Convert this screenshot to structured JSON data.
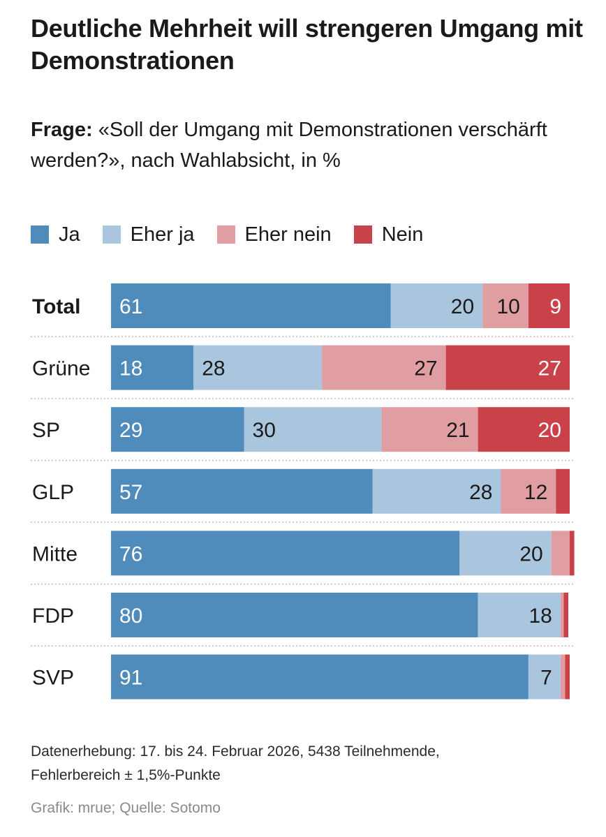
{
  "title": "Deutliche Mehrheit will strengeren Umgang mit Demonstrationen",
  "question": {
    "label": "Frage:",
    "text": "«Soll der Umgang mit Demonstrationen verschärft werden?», nach Wahlabsicht, in %"
  },
  "colors": {
    "ja": "#4f8cbc",
    "eher_ja": "#a9c6de",
    "eher_nein": "#e09ea2",
    "nein": "#c9424a"
  },
  "chart_data": {
    "type": "bar",
    "orientation": "horizontal",
    "stacked": true,
    "unit": "%",
    "legend": [
      "Ja",
      "Eher ja",
      "Eher nein",
      "Nein"
    ],
    "categories": [
      "Total",
      "Grüne",
      "SP",
      "GLP",
      "Mitte",
      "FDP",
      "SVP"
    ],
    "series": [
      {
        "name": "Ja",
        "values": [
          61,
          18,
          29,
          57,
          76,
          80,
          91
        ]
      },
      {
        "name": "Eher ja",
        "values": [
          20,
          28,
          30,
          28,
          20,
          18,
          7
        ]
      },
      {
        "name": "Eher nein",
        "values": [
          10,
          27,
          21,
          12,
          4,
          0.7,
          1
        ]
      },
      {
        "name": "Nein",
        "values": [
          9,
          27,
          20,
          3,
          1,
          1,
          1
        ]
      }
    ],
    "labels": [
      [
        "61",
        "20",
        "10",
        "9"
      ],
      [
        "18",
        "28",
        "27",
        "27"
      ],
      [
        "29",
        "30",
        "21",
        "20"
      ],
      [
        "57",
        "28",
        "12",
        ""
      ],
      [
        "76",
        "20",
        "",
        ""
      ],
      [
        "80",
        "18",
        "",
        ""
      ],
      [
        "91",
        "7",
        "",
        ""
      ]
    ],
    "xlim": [
      0,
      100
    ]
  },
  "footnote": {
    "line1": "Datenerhebung: 17. bis 24. Februar 2026, 5438 Teilnehmende,",
    "line2": "Fehlerbereich ± 1,5%-Punkte"
  },
  "credit": "Grafik: mrue; Quelle: Sotomo"
}
